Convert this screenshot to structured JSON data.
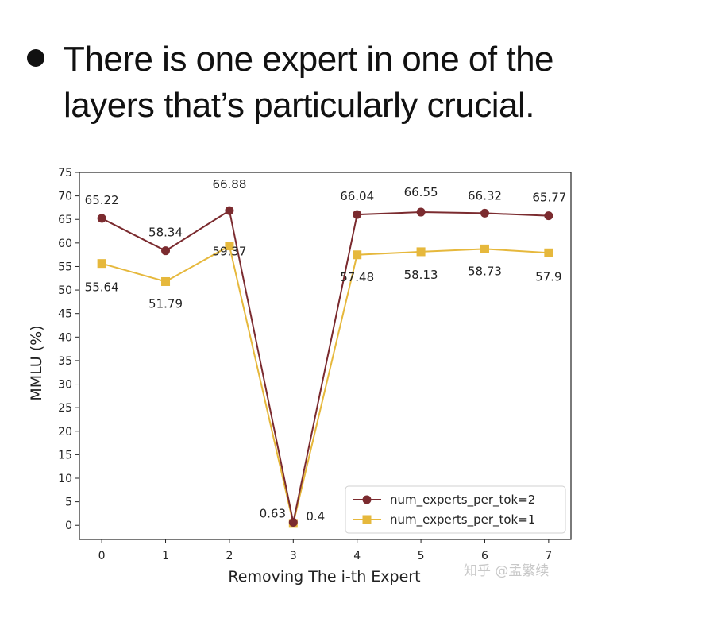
{
  "slide": {
    "bullet_text": "There is one expert in one of the layers that’s particularly crucial."
  },
  "watermark": "知乎 @孟繁续",
  "colors": {
    "series_2": "#7b2b2f",
    "series_1": "#e6b83c",
    "axis": "#222222",
    "legend_border": "#d0d0d0"
  },
  "chart_data": {
    "type": "line",
    "title": "",
    "xlabel": "Removing The i-th Expert",
    "ylabel": "MMLU (%)",
    "x": [
      0,
      1,
      2,
      3,
      4,
      5,
      6,
      7
    ],
    "xlim": [
      -0.35,
      7.35
    ],
    "ylim": [
      -3,
      75
    ],
    "yticks": [
      0,
      5,
      10,
      15,
      20,
      25,
      30,
      35,
      40,
      45,
      50,
      55,
      60,
      65,
      70,
      75
    ],
    "grid": false,
    "legend_position": "lower-right",
    "series": [
      {
        "name": "num_experts_per_tok=2",
        "marker": "circle",
        "values": [
          65.22,
          58.34,
          66.88,
          0.63,
          66.04,
          66.55,
          66.32,
          65.77
        ],
        "labels": [
          "65.22",
          "58.34",
          "66.88",
          "0.63",
          "66.04",
          "66.55",
          "66.32",
          "65.77"
        ]
      },
      {
        "name": "num_experts_per_tok=1",
        "marker": "square",
        "values": [
          55.64,
          51.79,
          59.37,
          0.4,
          57.48,
          58.13,
          58.73,
          57.9
        ],
        "labels": [
          "55.64",
          "51.79",
          "59.37",
          "0.4",
          "57.48",
          "58.13",
          "58.73",
          "57.9"
        ]
      }
    ]
  }
}
